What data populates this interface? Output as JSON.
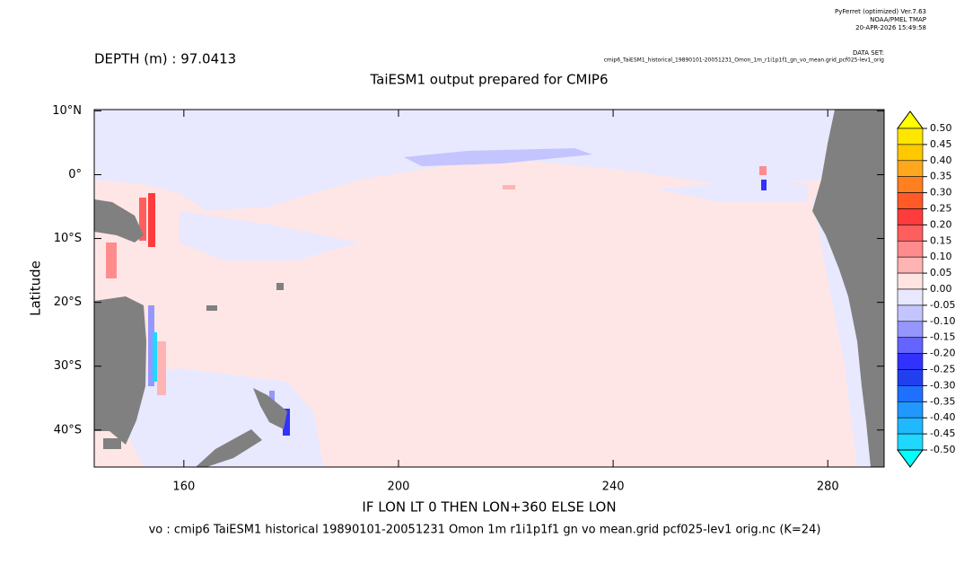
{
  "chart_data": {
    "type": "map",
    "header": [
      "PyFerret (optimized) Ver.7.63",
      "NOAA/PMEL TMAP",
      "20-APR-2026 15:49:58"
    ],
    "dataset_label": "DATA SET:",
    "dataset": "cmip6_TaiESM1_historical_19890101-20051231_Omon_1m_r1i1p1f1_gn_vo_mean.grid_pcf025-lev1_orig",
    "depth": "DEPTH (m) : 97.0413",
    "title": "TaiESM1 output prepared for CMIP6",
    "xlabel": "IF LON LT 0 THEN LON+360 ELSE LON",
    "ylabel": "Latitude",
    "footer": "vo : cmip6 TaiESM1 historical 19890101-20051231 Omon 1m r1i1p1f1 gn vo mean.grid pcf025-lev1 orig.nc (K=24)",
    "xlim": [
      143.3,
      290.5
    ],
    "ylim": [
      -45.8,
      10.2
    ],
    "xticks": [
      160,
      200,
      240,
      280
    ],
    "yticks": [
      {
        "value": 10,
        "label": "10°N"
      },
      {
        "value": 0,
        "label": "0°"
      },
      {
        "value": -10,
        "label": "10°S"
      },
      {
        "value": -20,
        "label": "20°S"
      },
      {
        "value": -30,
        "label": "30°S"
      },
      {
        "value": -40,
        "label": "40°S"
      }
    ],
    "colorbar": {
      "levels": [
        {
          "value": 0.5,
          "label": "0.50"
        },
        {
          "value": 0.45,
          "label": "0.45"
        },
        {
          "value": 0.4,
          "label": "0.40"
        },
        {
          "value": 0.35,
          "label": "0.35"
        },
        {
          "value": 0.3,
          "label": "0.30"
        },
        {
          "value": 0.25,
          "label": "0.25"
        },
        {
          "value": 0.2,
          "label": "0.20"
        },
        {
          "value": 0.15,
          "label": "0.15"
        },
        {
          "value": 0.1,
          "label": "0.10"
        },
        {
          "value": 0.05,
          "label": "0.05"
        },
        {
          "value": 0,
          "label": "0.00"
        },
        {
          "value": -0.05,
          "label": "-0.05"
        },
        {
          "value": -0.1,
          "label": "-0.10"
        },
        {
          "value": -0.15,
          "label": "-0.15"
        },
        {
          "value": -0.2,
          "label": "-0.20"
        },
        {
          "value": -0.25,
          "label": "-0.25"
        },
        {
          "value": -0.3,
          "label": "-0.30"
        },
        {
          "value": -0.35,
          "label": "-0.35"
        },
        {
          "value": -0.4,
          "label": "-0.40"
        },
        {
          "value": -0.45,
          "label": "-0.45"
        },
        {
          "value": -0.5,
          "label": "-0.50"
        }
      ],
      "colors": [
        "#ffff00",
        "#ffe600",
        "#ffc800",
        "#ffa81e",
        "#ff8020",
        "#ff5a28",
        "#ff3c3c",
        "#ff5e5e",
        "#ff8c8c",
        "#ffb4b4",
        "#ffe4e4",
        "#e8e8ff",
        "#c4c4ff",
        "#9696ff",
        "#6464ff",
        "#3232ff",
        "#2040f0",
        "#2070ff",
        "#2098ff",
        "#20b8ff",
        "#20d8ff",
        "#00ffff"
      ]
    }
  }
}
